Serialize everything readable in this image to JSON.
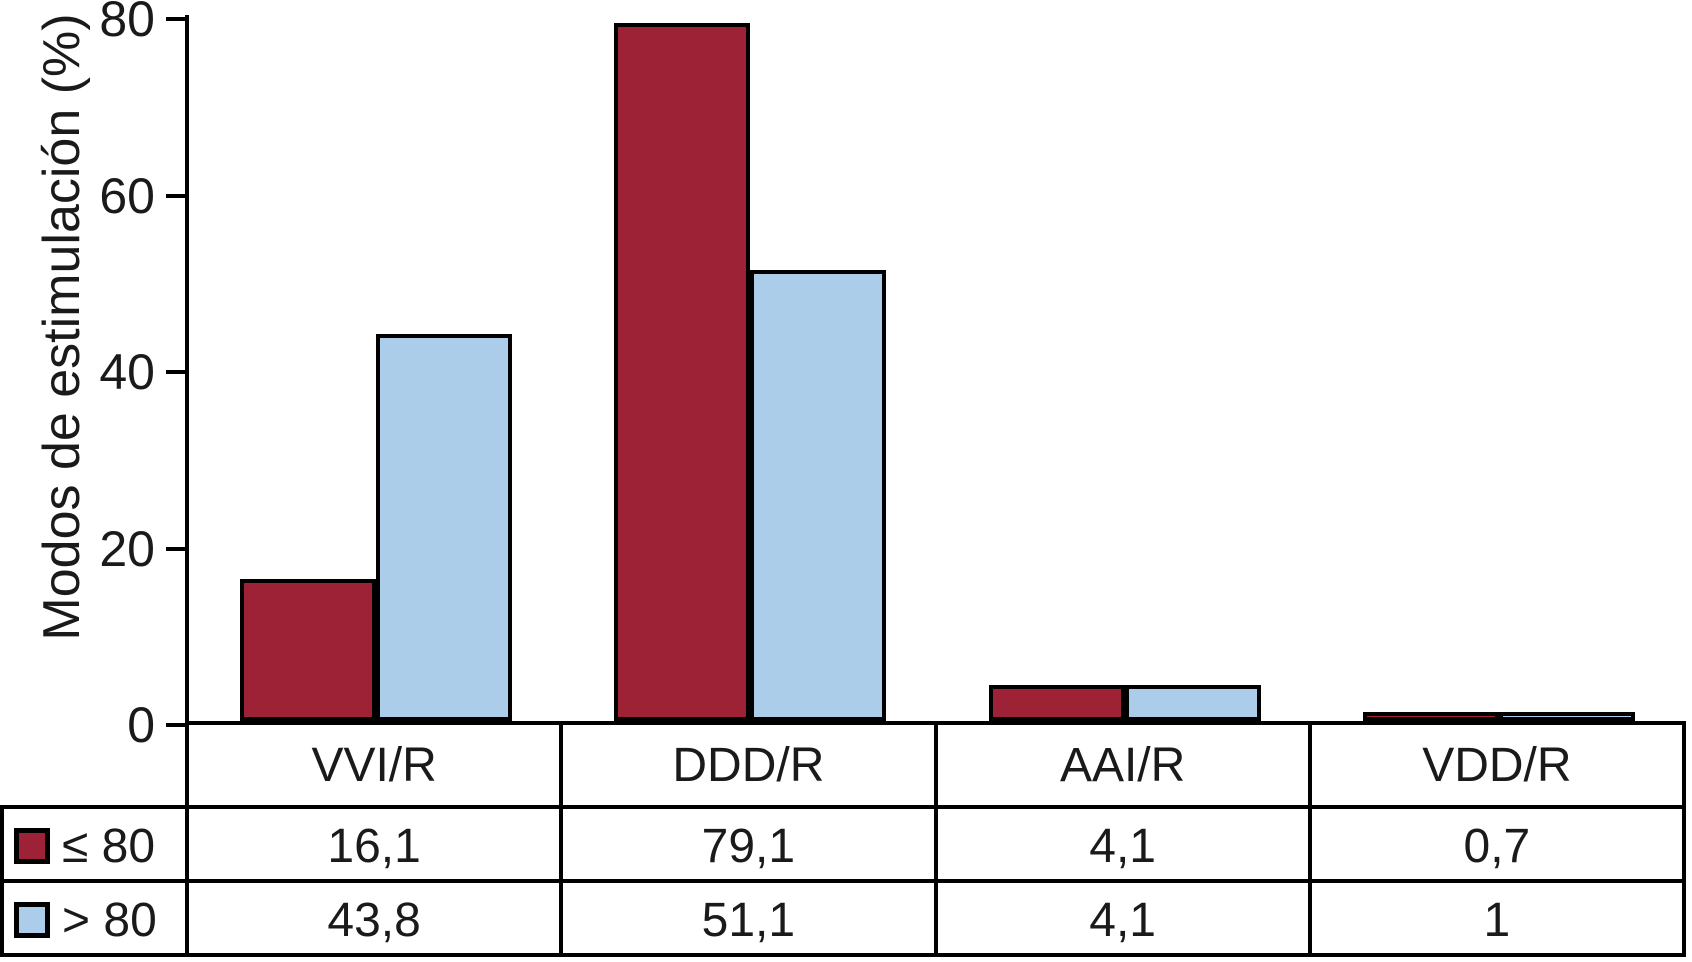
{
  "chart_data": {
    "type": "bar",
    "title": "",
    "xlabel": "",
    "ylabel": "Modos de estimulación (%)",
    "categories": [
      "VVI/R",
      "DDD/R",
      "AAI/R",
      "VDD/R"
    ],
    "series": [
      {
        "name": "≤ 80",
        "color": "#9D2235",
        "values": [
          16.1,
          79.1,
          4.1,
          0.7
        ],
        "display": [
          "16,1",
          "79,1",
          "4,1",
          "0,7"
        ]
      },
      {
        "name": "> 80",
        "color": "#ABCDEA",
        "values": [
          43.8,
          51.1,
          4.1,
          1
        ],
        "display": [
          "43,8",
          "51,1",
          "4,1",
          "1"
        ]
      }
    ],
    "ylim": [
      0,
      80
    ],
    "yticks": [
      0,
      20,
      40,
      60,
      80
    ],
    "grid": false,
    "bar_border_color": "#000000",
    "legend_position": "table-left"
  }
}
